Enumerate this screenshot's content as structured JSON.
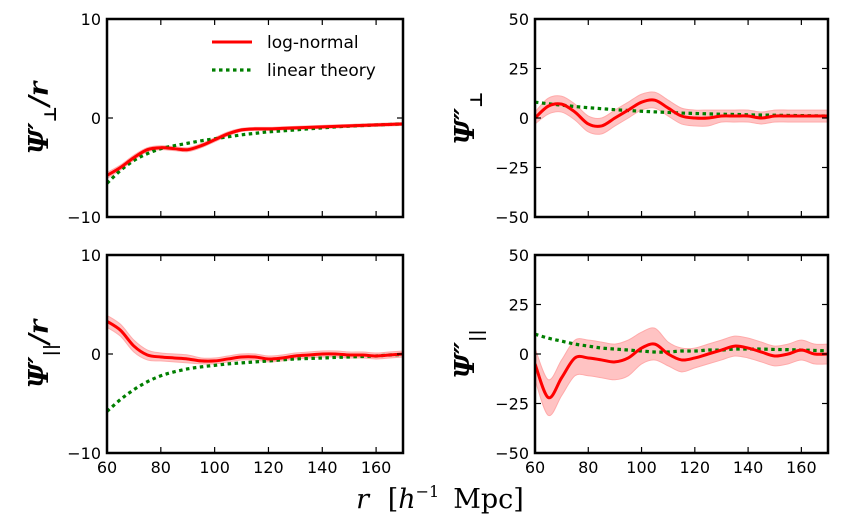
{
  "chart_data": [
    {
      "id": "p1",
      "type": "line",
      "ylabel_main": "Ψ′",
      "ylabel_sub": "⊥",
      "ylabel_tail": "/r",
      "xlim": [
        60,
        170
      ],
      "ylim": [
        -10,
        10
      ],
      "yticks": [
        10,
        0,
        -10
      ],
      "yticklabels": [
        "10",
        "0",
        "−10"
      ],
      "xticks": [],
      "x": [
        60,
        65,
        70,
        75,
        80,
        85,
        90,
        95,
        100,
        105,
        110,
        115,
        120,
        125,
        130,
        135,
        140,
        145,
        150,
        155,
        160,
        165,
        170
      ],
      "series": [
        {
          "name": "log-normal",
          "values": [
            -5.8,
            -5.0,
            -4.0,
            -3.2,
            -3.0,
            -3.1,
            -3.2,
            -2.8,
            -2.2,
            -1.6,
            -1.2,
            -1.1,
            -1.1,
            -1.05,
            -1.0,
            -0.95,
            -0.9,
            -0.85,
            -0.8,
            -0.75,
            -0.7,
            -0.65,
            -0.6
          ],
          "band": [
            0.3,
            0.25,
            0.25,
            0.2,
            0.2,
            0.2,
            0.2,
            0.2,
            0.2,
            0.2,
            0.15,
            0.15,
            0.15,
            0.15,
            0.15,
            0.15,
            0.15,
            0.15,
            0.15,
            0.15,
            0.15,
            0.15,
            0.15
          ]
        },
        {
          "name": "linear theory",
          "values": [
            -6.6,
            -5.3,
            -4.3,
            -3.6,
            -3.1,
            -2.8,
            -2.55,
            -2.3,
            -2.1,
            -1.9,
            -1.7,
            -1.55,
            -1.4,
            -1.3,
            -1.2,
            -1.1,
            -1.0,
            -0.9,
            -0.82,
            -0.76,
            -0.7,
            -0.65,
            -0.6
          ]
        }
      ],
      "legend": {
        "placement": "top-right",
        "entries": [
          "log-normal",
          "linear theory"
        ]
      }
    },
    {
      "id": "p2",
      "type": "line",
      "ylabel_main": "Ψ″",
      "ylabel_sub": "⊥",
      "ylabel_tail": "",
      "xlim": [
        60,
        170
      ],
      "ylim": [
        -50,
        50
      ],
      "yticks": [
        50,
        25,
        0,
        -25,
        -50
      ],
      "yticklabels": [
        "50",
        "25",
        "0",
        "−25",
        "−50"
      ],
      "xticks": [],
      "x": [
        60,
        65,
        70,
        75,
        80,
        85,
        90,
        95,
        100,
        105,
        110,
        115,
        120,
        125,
        130,
        135,
        140,
        145,
        150,
        155,
        160,
        165,
        170
      ],
      "series": [
        {
          "name": "log-normal",
          "values": [
            0,
            6,
            7,
            3,
            -3,
            -4,
            0,
            4,
            8,
            9,
            5,
            1,
            0,
            0,
            1,
            1,
            1,
            0,
            1,
            1,
            1,
            1,
            1
          ],
          "band": [
            3,
            4,
            4,
            4,
            4,
            4,
            4,
            4,
            4,
            4,
            4,
            4,
            4,
            4,
            3,
            3,
            3,
            3,
            3,
            3,
            3,
            3,
            3
          ]
        },
        {
          "name": "linear theory",
          "values": [
            8,
            7.2,
            6.5,
            5.8,
            5.2,
            4.7,
            4.2,
            3.8,
            3.4,
            3.1,
            2.8,
            2.5,
            2.3,
            2.1,
            1.9,
            1.8,
            1.6,
            1.5,
            1.4,
            1.3,
            1.2,
            1.1,
            1.0
          ]
        }
      ]
    },
    {
      "id": "p3",
      "type": "line",
      "ylabel_main": "Ψ′",
      "ylabel_sub": "||",
      "ylabel_tail": "/r",
      "xlim": [
        60,
        170
      ],
      "ylim": [
        -10,
        10
      ],
      "yticks": [
        10,
        0,
        -10
      ],
      "yticklabels": [
        "10",
        "0",
        "−10"
      ],
      "xticks": [
        60,
        80,
        100,
        120,
        140,
        160
      ],
      "xticklabels": [
        "60",
        "80",
        "100",
        "120",
        "140",
        "160"
      ],
      "x": [
        60,
        65,
        70,
        75,
        80,
        85,
        90,
        95,
        100,
        105,
        110,
        115,
        120,
        125,
        130,
        135,
        140,
        145,
        150,
        155,
        160,
        165,
        170
      ],
      "series": [
        {
          "name": "log-normal",
          "values": [
            3.3,
            2.4,
            0.8,
            -0.1,
            -0.3,
            -0.4,
            -0.5,
            -0.7,
            -0.7,
            -0.5,
            -0.3,
            -0.3,
            -0.5,
            -0.4,
            -0.2,
            -0.1,
            0,
            0,
            -0.1,
            -0.1,
            -0.2,
            -0.1,
            0
          ],
          "band": [
            0.6,
            0.6,
            0.6,
            0.5,
            0.4,
            0.4,
            0.4,
            0.3,
            0.3,
            0.3,
            0.3,
            0.3,
            0.3,
            0.3,
            0.3,
            0.3,
            0.3,
            0.3,
            0.3,
            0.3,
            0.3,
            0.3,
            0.3
          ]
        },
        {
          "name": "linear theory",
          "values": [
            -5.8,
            -4.6,
            -3.6,
            -2.8,
            -2.2,
            -1.8,
            -1.5,
            -1.3,
            -1.15,
            -1.0,
            -0.9,
            -0.8,
            -0.7,
            -0.6,
            -0.5,
            -0.45,
            -0.4,
            -0.35,
            -0.3,
            -0.25,
            -0.2,
            -0.1,
            -0.05
          ]
        }
      ]
    },
    {
      "id": "p4",
      "type": "line",
      "ylabel_main": "Ψ″",
      "ylabel_sub": "||",
      "ylabel_tail": "",
      "xlim": [
        60,
        170
      ],
      "ylim": [
        -50,
        50
      ],
      "yticks": [
        50,
        25,
        0,
        -25,
        -50
      ],
      "yticklabels": [
        "50",
        "25",
        "0",
        "−25",
        "−50"
      ],
      "xticks": [
        60,
        80,
        100,
        120,
        140,
        160
      ],
      "xticklabels": [
        "60",
        "80",
        "100",
        "120",
        "140",
        "160"
      ],
      "x": [
        60,
        65,
        70,
        75,
        80,
        85,
        90,
        95,
        100,
        105,
        110,
        115,
        120,
        125,
        130,
        135,
        140,
        145,
        150,
        155,
        160,
        165,
        170
      ],
      "series": [
        {
          "name": "log-normal",
          "values": [
            -5,
            -22,
            -12,
            -2,
            -2,
            -3,
            -4,
            -2,
            3,
            5,
            0,
            -3,
            -2,
            0,
            2,
            4,
            3,
            1,
            -1,
            0,
            2,
            0,
            0
          ],
          "band": [
            8,
            9,
            9,
            9,
            9,
            9,
            9,
            9,
            8,
            8,
            6,
            6,
            5,
            5,
            5,
            5,
            5,
            5,
            5,
            5,
            5,
            5,
            5
          ]
        },
        {
          "name": "linear theory",
          "values": [
            10,
            8,
            6.5,
            5,
            4,
            3,
            2.5,
            2,
            1.5,
            1,
            1,
            1.5,
            1.5,
            2,
            2,
            2.5,
            2.5,
            2.5,
            2.3,
            2.2,
            2,
            1.8,
            1.6
          ]
        }
      ]
    }
  ],
  "xlabel": {
    "r": "r",
    "bracket_open": "[",
    "h": "h",
    "sup": "−1",
    "unit": "Mpc",
    "bracket_close": "]"
  },
  "colors": {
    "lognormal": "#ff0000",
    "band": "#ffaaaa",
    "linear": "#007f00"
  }
}
